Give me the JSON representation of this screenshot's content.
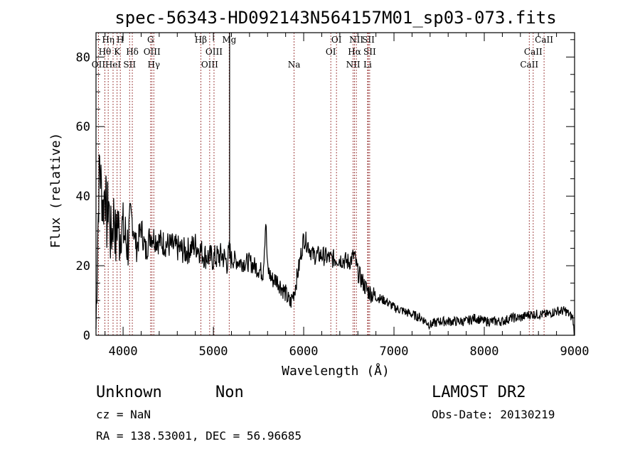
{
  "chart_data": {
    "type": "line",
    "title": "spec-56343-HD092143N564157M01_sp03-073.fits",
    "xlabel": "Wavelength (Å)",
    "ylabel": "Flux (relative)",
    "xlim": [
      3700,
      9000
    ],
    "ylim": [
      0,
      87
    ],
    "x_ticks": [
      4000,
      5000,
      6000,
      7000,
      8000,
      9000
    ],
    "y_ticks": [
      0,
      20,
      40,
      60,
      80
    ],
    "series": [
      {
        "x": [
          3700,
          3720,
          3740,
          3760,
          3780,
          3800,
          3820,
          3840,
          3860,
          3880,
          3900,
          3920,
          3940,
          3960,
          3980,
          4000,
          4050,
          4100,
          4150,
          4200,
          4250,
          4300,
          4350,
          4400,
          4500,
          4600,
          4700,
          4800,
          4900,
          5000,
          5100,
          5150,
          5180,
          5200,
          5300,
          5400,
          5500,
          5550,
          5580,
          5600,
          5650,
          5700,
          5750,
          5800,
          5850,
          5900,
          5950,
          6000,
          6050,
          6100,
          6200,
          6300,
          6400,
          6500,
          6560,
          6600,
          6700,
          6800,
          6900,
          7000,
          7100,
          7200,
          7300,
          7400,
          7500,
          7600,
          7700,
          7800,
          7900,
          8000,
          8100,
          8200,
          8300,
          8400,
          8500,
          8600,
          8700,
          8800,
          8900,
          8980,
          9000
        ],
        "y": [
          2,
          30,
          50,
          42,
          36,
          44,
          32,
          40,
          28,
          30,
          36,
          26,
          34,
          28,
          32,
          30,
          26,
          33,
          25,
          31,
          24,
          29,
          28,
          27,
          26,
          25,
          24,
          26,
          23,
          22,
          23,
          21,
          24,
          22,
          21,
          21,
          19,
          18,
          33,
          19,
          16,
          16,
          14,
          12,
          9,
          13,
          20,
          28,
          26,
          23,
          23,
          22,
          22,
          21,
          23,
          18,
          13,
          11,
          10,
          8,
          7,
          6,
          5,
          3,
          4,
          4,
          4,
          4,
          5,
          4,
          4,
          4,
          5,
          5,
          6,
          6,
          6,
          7,
          7,
          5,
          0
        ]
      }
    ],
    "lines": [
      {
        "label": "OII",
        "wl": 3727,
        "row": 2
      },
      {
        "label": "Hθ",
        "wl": 3798,
        "row": 1
      },
      {
        "label": "Hη",
        "wl": 3835,
        "row": 0
      },
      {
        "label": "HeI",
        "wl": 3889,
        "row": 2
      },
      {
        "label": "K",
        "wl": 3934,
        "row": 1
      },
      {
        "label": "H",
        "wl": 3969,
        "row": 0
      },
      {
        "label": "SII",
        "wl": 4072,
        "row": 2
      },
      {
        "label": "Hδ",
        "wl": 4102,
        "row": 1
      },
      {
        "label": "G",
        "wl": 4305,
        "row": 0
      },
      {
        "label": "OIII",
        "wl": 4320,
        "row": 1
      },
      {
        "label": "Hγ",
        "wl": 4340,
        "row": 2
      },
      {
        "label": "Hβ",
        "wl": 4861,
        "row": 0
      },
      {
        "label": "OIII",
        "wl": 4959,
        "row": 2
      },
      {
        "label": "OIII",
        "wl": 5007,
        "row": 1
      },
      {
        "label": "Mg",
        "wl": 5175,
        "row": 0
      },
      {
        "label": "Na",
        "wl": 5894,
        "row": 2
      },
      {
        "label": "OI",
        "wl": 6300,
        "row": 1
      },
      {
        "label": "OI",
        "wl": 6363,
        "row": 0
      },
      {
        "label": "NII",
        "wl": 6548,
        "row": 2
      },
      {
        "label": "NII",
        "wl": 6583,
        "row": 0
      },
      {
        "label": "Hα",
        "wl": 6563,
        "row": 1
      },
      {
        "label": "SII",
        "wl": 6716,
        "row": 0
      },
      {
        "label": "SII",
        "wl": 6731,
        "row": 1
      },
      {
        "label": "Li",
        "wl": 6708,
        "row": 2
      },
      {
        "label": "CaII",
        "wl": 8498,
        "row": 2
      },
      {
        "label": "CaII",
        "wl": 8542,
        "row": 1
      },
      {
        "label": "CaII",
        "wl": 8662,
        "row": 0
      }
    ]
  },
  "footer": {
    "object_class": "Unknown",
    "object_subclass": "Non",
    "survey": "LAMOST DR2",
    "cz": "cz = NaN",
    "obs_date": "Obs-Date: 20130219",
    "radec": "RA = 138.53001, DEC =  56.96685"
  },
  "colors": {
    "spectrum": "#000000",
    "line_marker": "#8b1a1a"
  }
}
